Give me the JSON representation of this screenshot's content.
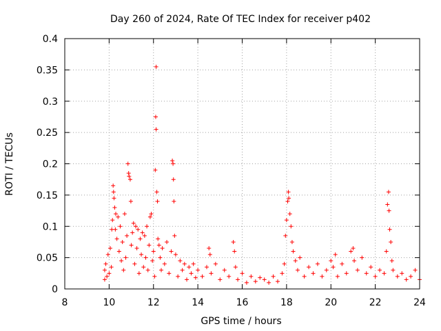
{
  "chart_data": {
    "type": "scatter",
    "title": "Day 260 of 2024, Rate Of TEC Index for receiver p402",
    "xlabel": "GPS time / hours",
    "ylabel": "ROTI / TECUs",
    "xlim": [
      8,
      24
    ],
    "ylim": [
      0,
      0.4
    ],
    "x_ticks": [
      8,
      10,
      12,
      14,
      16,
      18,
      20,
      22,
      24
    ],
    "x_tick_labels": [
      "8",
      "10",
      "12",
      "14",
      "16",
      "18",
      "20",
      "22",
      "24"
    ],
    "y_ticks": [
      0,
      0.05,
      0.1,
      0.15,
      0.2,
      0.25,
      0.3,
      0.35,
      0.4
    ],
    "y_tick_labels": [
      "0",
      "0.05",
      "0.1",
      "0.15",
      "0.2",
      "0.25",
      "0.3",
      "0.35",
      "0.4"
    ],
    "grid": true,
    "marker": "plus",
    "color": "#ff0000",
    "series": [
      {
        "name": "ROTI",
        "points": [
          [
            9.8,
            0.03
          ],
          [
            9.8,
            0.015
          ],
          [
            9.85,
            0.04
          ],
          [
            9.9,
            0.02
          ],
          [
            9.95,
            0.055
          ],
          [
            10.0,
            0.025
          ],
          [
            10.05,
            0.065
          ],
          [
            10.1,
            0.035
          ],
          [
            10.12,
            0.095
          ],
          [
            10.15,
            0.11
          ],
          [
            10.18,
            0.165
          ],
          [
            10.2,
            0.155
          ],
          [
            10.22,
            0.145
          ],
          [
            10.25,
            0.13
          ],
          [
            10.28,
            0.095
          ],
          [
            10.3,
            0.12
          ],
          [
            10.35,
            0.08
          ],
          [
            10.4,
            0.115
          ],
          [
            10.45,
            0.06
          ],
          [
            10.5,
            0.1
          ],
          [
            10.55,
            0.045
          ],
          [
            10.6,
            0.075
          ],
          [
            10.65,
            0.03
          ],
          [
            10.7,
            0.12
          ],
          [
            10.75,
            0.05
          ],
          [
            10.8,
            0.085
          ],
          [
            10.85,
            0.2
          ],
          [
            10.88,
            0.185
          ],
          [
            10.9,
            0.18
          ],
          [
            10.95,
            0.175
          ],
          [
            10.98,
            0.14
          ],
          [
            11.0,
            0.07
          ],
          [
            11.05,
            0.09
          ],
          [
            11.1,
            0.105
          ],
          [
            11.15,
            0.04
          ],
          [
            11.2,
            0.1
          ],
          [
            11.25,
            0.065
          ],
          [
            11.3,
            0.095
          ],
          [
            11.35,
            0.025
          ],
          [
            11.4,
            0.08
          ],
          [
            11.45,
            0.055
          ],
          [
            11.5,
            0.09
          ],
          [
            11.55,
            0.035
          ],
          [
            11.6,
            0.085
          ],
          [
            11.65,
            0.05
          ],
          [
            11.7,
            0.1
          ],
          [
            11.75,
            0.03
          ],
          [
            11.8,
            0.07
          ],
          [
            11.85,
            0.115
          ],
          [
            11.9,
            0.12
          ],
          [
            11.95,
            0.045
          ],
          [
            12.0,
            0.06
          ],
          [
            12.05,
            0.02
          ],
          [
            12.08,
            0.19
          ],
          [
            12.1,
            0.275
          ],
          [
            12.12,
            0.255
          ],
          [
            12.12,
            0.355
          ],
          [
            12.15,
            0.155
          ],
          [
            12.18,
            0.14
          ],
          [
            12.2,
            0.08
          ],
          [
            12.25,
            0.07
          ],
          [
            12.3,
            0.05
          ],
          [
            12.35,
            0.03
          ],
          [
            12.4,
            0.065
          ],
          [
            12.5,
            0.04
          ],
          [
            12.6,
            0.075
          ],
          [
            12.7,
            0.025
          ],
          [
            12.8,
            0.06
          ],
          [
            12.85,
            0.205
          ],
          [
            12.88,
            0.2
          ],
          [
            12.9,
            0.175
          ],
          [
            12.92,
            0.14
          ],
          [
            12.95,
            0.085
          ],
          [
            13.0,
            0.055
          ],
          [
            13.1,
            0.02
          ],
          [
            13.2,
            0.045
          ],
          [
            13.3,
            0.03
          ],
          [
            13.4,
            0.04
          ],
          [
            13.5,
            0.015
          ],
          [
            13.6,
            0.035
          ],
          [
            13.7,
            0.025
          ],
          [
            13.8,
            0.04
          ],
          [
            13.9,
            0.018
          ],
          [
            14.0,
            0.03
          ],
          [
            14.2,
            0.02
          ],
          [
            14.4,
            0.035
          ],
          [
            14.5,
            0.065
          ],
          [
            14.55,
            0.055
          ],
          [
            14.6,
            0.025
          ],
          [
            14.8,
            0.04
          ],
          [
            15.0,
            0.015
          ],
          [
            15.2,
            0.03
          ],
          [
            15.4,
            0.02
          ],
          [
            15.6,
            0.075
          ],
          [
            15.65,
            0.06
          ],
          [
            15.7,
            0.035
          ],
          [
            15.8,
            0.015
          ],
          [
            16.0,
            0.025
          ],
          [
            16.2,
            0.01
          ],
          [
            16.4,
            0.02
          ],
          [
            16.6,
            0.012
          ],
          [
            16.8,
            0.018
          ],
          [
            17.0,
            0.015
          ],
          [
            17.2,
            0.01
          ],
          [
            17.4,
            0.02
          ],
          [
            17.6,
            0.012
          ],
          [
            17.8,
            0.025
          ],
          [
            17.9,
            0.04
          ],
          [
            17.95,
            0.085
          ],
          [
            18.0,
            0.11
          ],
          [
            18.05,
            0.14
          ],
          [
            18.08,
            0.155
          ],
          [
            18.1,
            0.145
          ],
          [
            18.15,
            0.12
          ],
          [
            18.2,
            0.1
          ],
          [
            18.25,
            0.075
          ],
          [
            18.3,
            0.06
          ],
          [
            18.4,
            0.045
          ],
          [
            18.5,
            0.03
          ],
          [
            18.6,
            0.05
          ],
          [
            18.8,
            0.02
          ],
          [
            19.0,
            0.035
          ],
          [
            19.2,
            0.025
          ],
          [
            19.4,
            0.04
          ],
          [
            19.6,
            0.02
          ],
          [
            19.8,
            0.03
          ],
          [
            20.0,
            0.045
          ],
          [
            20.1,
            0.035
          ],
          [
            20.2,
            0.055
          ],
          [
            20.3,
            0.02
          ],
          [
            20.5,
            0.04
          ],
          [
            20.7,
            0.025
          ],
          [
            20.9,
            0.06
          ],
          [
            21.0,
            0.065
          ],
          [
            21.05,
            0.045
          ],
          [
            21.2,
            0.03
          ],
          [
            21.4,
            0.05
          ],
          [
            21.6,
            0.025
          ],
          [
            21.8,
            0.035
          ],
          [
            22.0,
            0.02
          ],
          [
            22.2,
            0.03
          ],
          [
            22.4,
            0.025
          ],
          [
            22.5,
            0.06
          ],
          [
            22.55,
            0.135
          ],
          [
            22.6,
            0.155
          ],
          [
            22.62,
            0.125
          ],
          [
            22.65,
            0.095
          ],
          [
            22.7,
            0.075
          ],
          [
            22.75,
            0.045
          ],
          [
            22.8,
            0.03
          ],
          [
            23.0,
            0.02
          ],
          [
            23.2,
            0.025
          ],
          [
            23.4,
            0.015
          ],
          [
            23.6,
            0.02
          ],
          [
            23.8,
            0.03
          ],
          [
            24.0,
            0.015
          ]
        ]
      }
    ]
  }
}
